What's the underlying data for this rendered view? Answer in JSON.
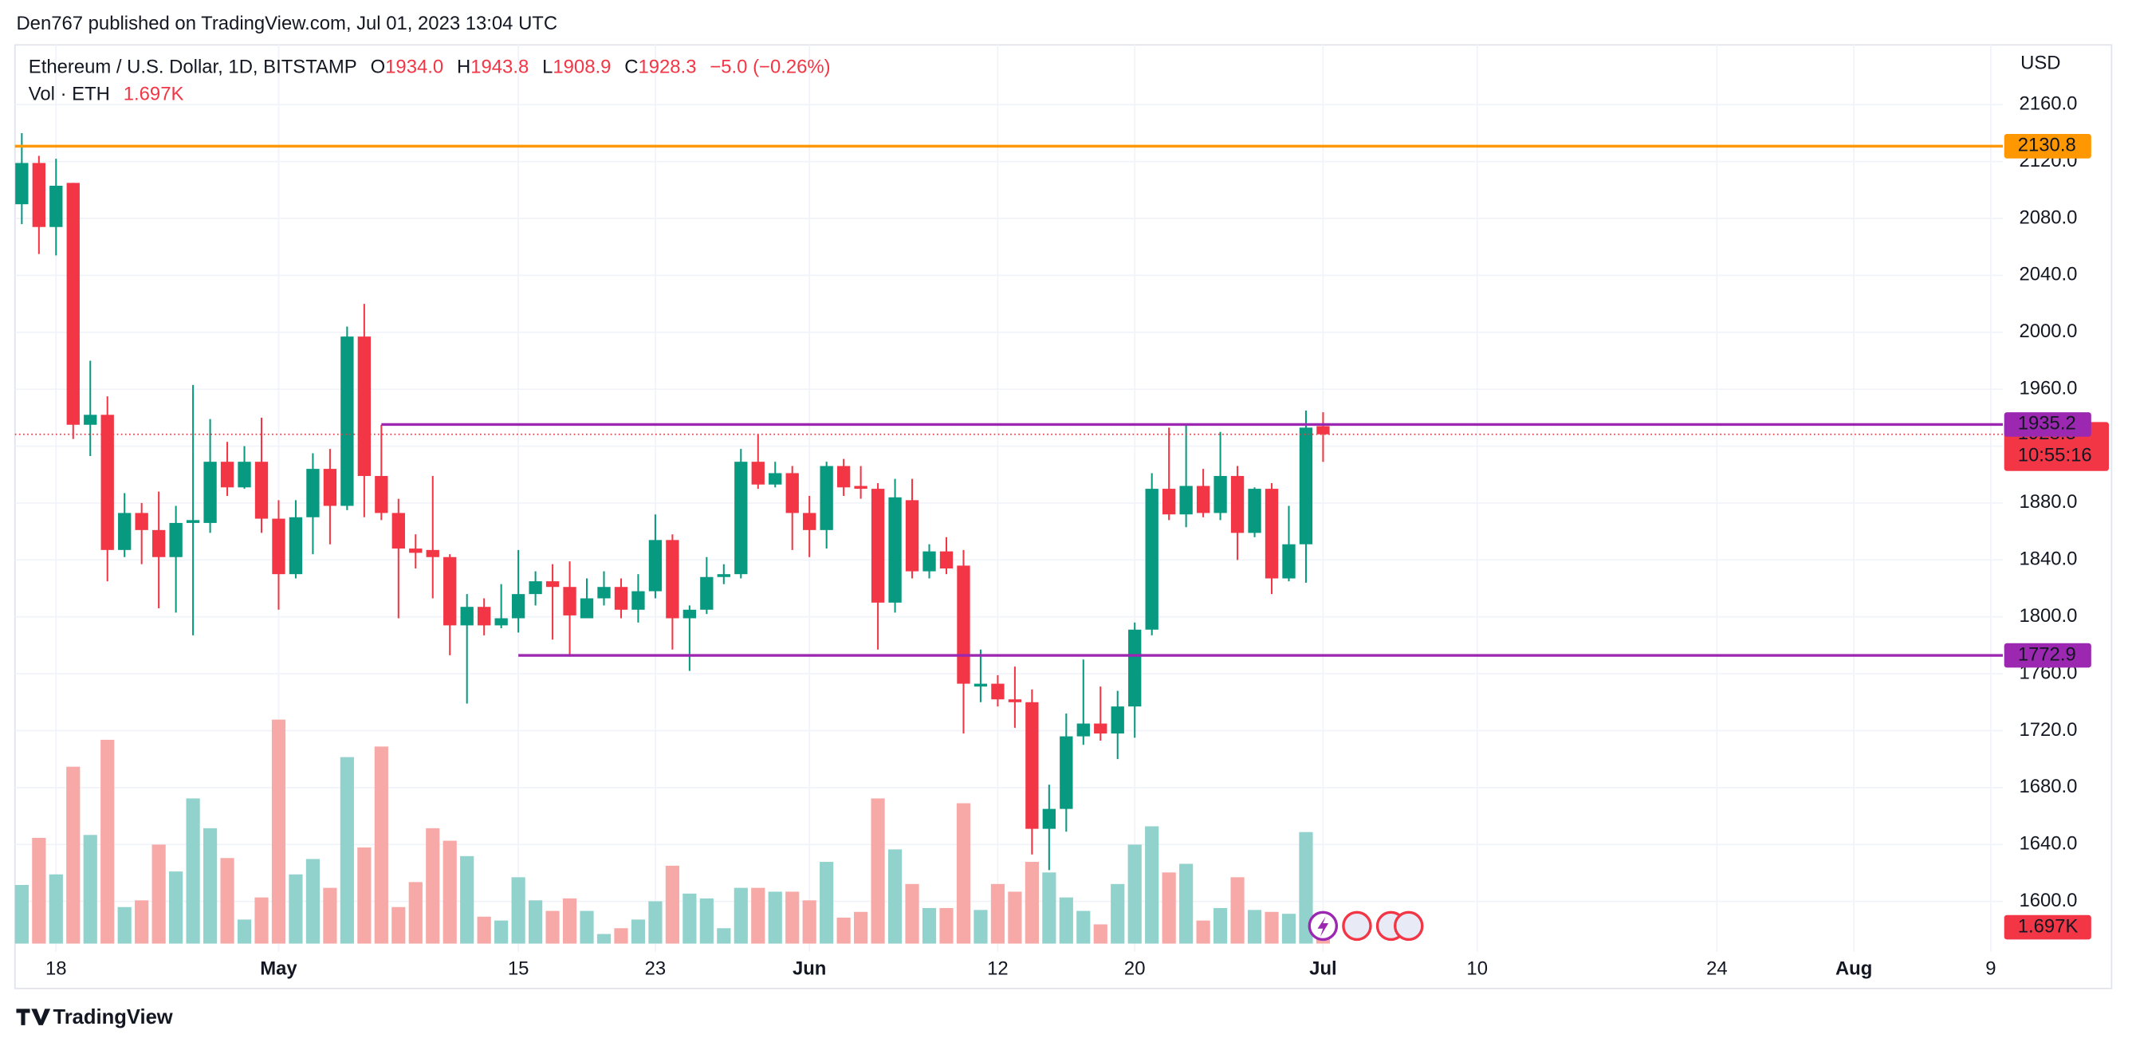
{
  "header": {
    "published": "Den767 published on TradingView.com, Jul 01, 2023 13:04 UTC",
    "symbol": "Ethereum / U.S. Dollar, 1D, BITSTAMP",
    "o_label": "O",
    "o": "1934.0",
    "h_label": "H",
    "h": "1943.8",
    "l_label": "L",
    "l": "1908.9",
    "c_label": "C",
    "c": "1928.3",
    "change": "−5.0 (−0.26%)",
    "vol_label": "Vol · ETH",
    "vol": "1.697K"
  },
  "footer": {
    "brand": "TradingView"
  },
  "chart_data": {
    "type": "candlestick",
    "currency": "USD",
    "up_color": "#089981",
    "down_color": "#f23645",
    "volume_up_color": "#92d2cc",
    "volume_down_color": "#f7a9a7",
    "open": [
      2090,
      2119,
      2074,
      2105,
      1935,
      1942,
      1847,
      1873,
      1861,
      1842,
      1866,
      1866,
      1909,
      1891,
      1909,
      1869,
      1830,
      1870,
      1904,
      1878,
      1997,
      1899,
      1873,
      1848,
      1847,
      1842,
      1794,
      1807,
      1794,
      1799,
      1816,
      1825,
      1821,
      1799,
      1813,
      1821,
      1805,
      1818,
      1854,
      1799,
      1805,
      1828,
      1830,
      1909,
      1893,
      1901,
      1873,
      1861,
      1906,
      1892,
      1890,
      1810,
      1882,
      1832,
      1846,
      1836,
      1751,
      1753,
      1742,
      1740,
      1651,
      1665,
      1716,
      1725,
      1718,
      1737,
      1791,
      1890,
      1872,
      1892,
      1873,
      1899,
      1859,
      1890,
      1827,
      1851,
      1934
    ],
    "high": [
      2140,
      2124,
      2122,
      2105,
      1980,
      1955,
      1887,
      1880,
      1888,
      1878,
      1963,
      1939,
      1923,
      1920,
      1940,
      1882,
      1882,
      1915,
      1918,
      2004,
      2020,
      1935,
      1883,
      1858,
      1899,
      1844,
      1816,
      1813,
      1823,
      1847,
      1832,
      1837,
      1839,
      1827,
      1832,
      1827,
      1830,
      1872,
      1858,
      1808,
      1842,
      1837,
      1918,
      1928,
      1909,
      1906,
      1885,
      1909,
      1911,
      1906,
      1894,
      1897,
      1897,
      1851,
      1856,
      1847,
      1777,
      1759,
      1765,
      1749,
      1682,
      1732,
      1770,
      1751,
      1748,
      1796,
      1901,
      1933,
      1935,
      1904,
      1930,
      1906,
      1891,
      1894,
      1878,
      1945,
      1943.8
    ],
    "low": [
      2076,
      2055,
      2054,
      1925,
      1913,
      1825,
      1842,
      1837,
      1806,
      1803,
      1787,
      1859,
      1885,
      1890,
      1859,
      1805,
      1827,
      1844,
      1851,
      1875,
      1870,
      1868,
      1799,
      1834,
      1813,
      1773,
      1739,
      1787,
      1792,
      1789,
      1808,
      1784,
      1772,
      1799,
      1808,
      1799,
      1796,
      1813,
      1777,
      1762,
      1802,
      1823,
      1827,
      1890,
      1891,
      1847,
      1842,
      1848,
      1885,
      1883,
      1777,
      1803,
      1827,
      1827,
      1830,
      1718,
      1740,
      1737,
      1722,
      1633,
      1622,
      1649,
      1710,
      1713,
      1700,
      1715,
      1787,
      1868,
      1863,
      1870,
      1868,
      1840,
      1856,
      1816,
      1825,
      1824,
      1908.9
    ],
    "close": [
      2119,
      2074,
      2103,
      1935,
      1942,
      1847,
      1873,
      1861,
      1842,
      1866,
      1868,
      1909,
      1891,
      1909,
      1869,
      1830,
      1870,
      1904,
      1878,
      1997,
      1899,
      1873,
      1848,
      1845,
      1842,
      1794,
      1807,
      1794,
      1799,
      1816,
      1825,
      1821,
      1801,
      1813,
      1821,
      1805,
      1818,
      1854,
      1799,
      1805,
      1828,
      1830,
      1909,
      1893,
      1901,
      1873,
      1861,
      1906,
      1891,
      1890,
      1810,
      1884,
      1832,
      1846,
      1834,
      1753,
      1753,
      1742,
      1740,
      1651,
      1665,
      1716,
      1725,
      1718,
      1737,
      1791,
      1890,
      1872,
      1892,
      1873,
      1899,
      1859,
      1890,
      1827,
      1851,
      1933,
      1928.3
    ],
    "volume": [
      6.1,
      11.0,
      7.2,
      18.4,
      11.3,
      21.2,
      3.8,
      4.5,
      10.3,
      7.5,
      15.1,
      12.0,
      8.9,
      2.5,
      4.8,
      23.3,
      7.2,
      8.8,
      5.8,
      19.4,
      10.0,
      20.5,
      3.8,
      6.4,
      12.0,
      10.7,
      9.1,
      2.8,
      2.4,
      6.9,
      4.5,
      3.4,
      4.7,
      3.4,
      1.0,
      1.6,
      2.5,
      4.4,
      8.1,
      5.2,
      4.7,
      1.6,
      5.8,
      5.8,
      5.4,
      5.4,
      4.5,
      8.5,
      2.7,
      3.3,
      15.1,
      9.8,
      6.2,
      3.7,
      3.7,
      14.6,
      3.5,
      6.2,
      5.4,
      8.5,
      7.4,
      4.8,
      3.4,
      2.0,
      6.2,
      10.3,
      12.2,
      7.4,
      8.3,
      2.4,
      3.7,
      6.9,
      3.5,
      3.3,
      3.1,
      11.6,
      1.697
    ],
    "volume_last_label": "1.697K",
    "countdown": "10:55:16",
    "levels": [
      {
        "value": 2130.8,
        "color": "#ff9800",
        "text_color": "#131722"
      },
      {
        "value": 1935.2,
        "color": "#9c27b0",
        "text_color": "#ffffff",
        "from": 21
      },
      {
        "value": 1772.9,
        "color": "#9c27b0",
        "text_color": "#ffffff",
        "from": 29
      }
    ],
    "xlim": [
      -0.4,
      115.7
    ],
    "xticks": [
      {
        "value": 2,
        "label": "18"
      },
      {
        "value": 15,
        "label": "May"
      },
      {
        "value": 29,
        "label": "15"
      },
      {
        "value": 37,
        "label": "23"
      },
      {
        "value": 46,
        "label": "Jun"
      },
      {
        "value": 57,
        "label": "12"
      },
      {
        "value": 65,
        "label": "20"
      },
      {
        "value": 76,
        "label": "Jul"
      },
      {
        "value": 85,
        "label": "10"
      },
      {
        "value": 99,
        "label": "24"
      },
      {
        "value": 107,
        "label": "Aug"
      },
      {
        "value": 115,
        "label": "9"
      }
    ],
    "ylim": [
      1564.6,
      2202
    ],
    "yticks": [
      {
        "value": 1600,
        "label": "1600.0"
      },
      {
        "value": 1640,
        "label": "1640.0"
      },
      {
        "value": 1680,
        "label": "1680.0"
      },
      {
        "value": 1720,
        "label": "1720.0"
      },
      {
        "value": 1760,
        "label": "1760.0"
      },
      {
        "value": 1800,
        "label": "1800.0"
      },
      {
        "value": 1840,
        "label": "1840.0"
      },
      {
        "value": 1880,
        "label": "1880.0"
      },
      {
        "value": 1920,
        "label": "1920.0"
      },
      {
        "value": 1960,
        "label": "1960.0"
      },
      {
        "value": 2000,
        "label": "2000.0"
      },
      {
        "value": 2040,
        "label": "2040.0"
      },
      {
        "value": 2080,
        "label": "2080.0"
      },
      {
        "value": 2120,
        "label": "2120.0"
      },
      {
        "value": 2160,
        "label": "2160.0"
      }
    ],
    "grid": true
  }
}
